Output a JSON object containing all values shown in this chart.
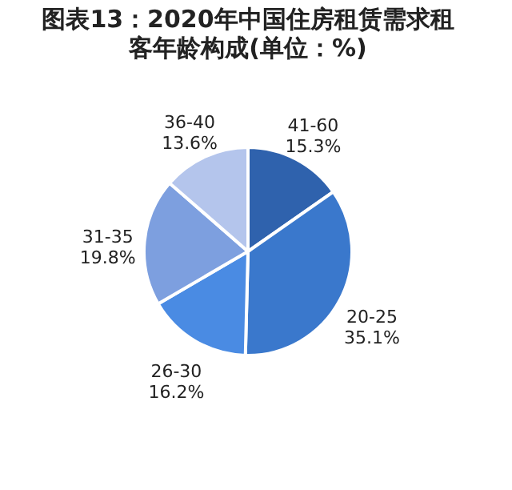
{
  "chart_data": {
    "type": "pie",
    "title": "图表13：2020年中国住房租赁需求租客年龄构成(单位：%)",
    "categories": [
      "41-60",
      "20-25",
      "26-30",
      "31-35",
      "36-40"
    ],
    "values": [
      15.3,
      35.1,
      16.2,
      19.8,
      13.6
    ],
    "value_labels": [
      "15.3%",
      "35.1%",
      "16.2%",
      "19.8%",
      "13.6%"
    ],
    "colors": [
      "#2f62ad",
      "#3a78cc",
      "#4a8be3",
      "#7d9fdf",
      "#b4c5ec"
    ],
    "legend": false
  }
}
